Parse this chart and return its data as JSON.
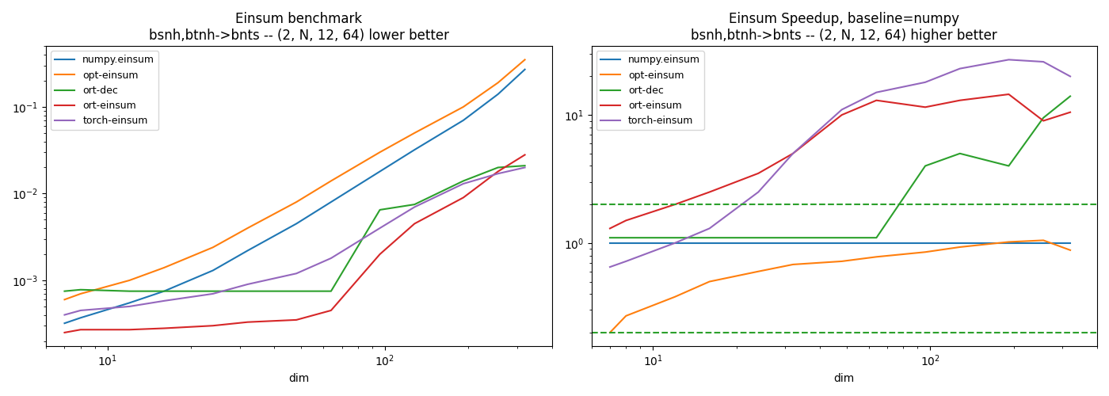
{
  "left_title": "Einsum benchmark\nbsnh,btnh->bnts -- (2, N, 12, 64) lower better",
  "right_title": "Einsum Speedup, baseline=numpy\nbsnh,btnh->bnts -- (2, N, 12, 64) higher better",
  "xlabel": "dim",
  "colors": {
    "numpy": "#1f77b4",
    "opt": "#ff7f0e",
    "ort_dec": "#2ca02c",
    "ort_einsum": "#d62728",
    "torch": "#9467bd"
  },
  "labels": [
    "numpy.einsum",
    "opt-einsum",
    "ort-dec",
    "ort-einsum",
    "torch-einsum"
  ],
  "series_keys": [
    "numpy",
    "opt",
    "ort_dec",
    "ort_einsum",
    "torch"
  ],
  "benchmark_x": {
    "numpy": [
      7,
      8,
      12,
      16,
      24,
      32,
      48,
      64,
      96,
      128,
      192,
      256,
      320
    ],
    "opt": [
      7,
      8,
      12,
      16,
      24,
      32,
      48,
      64,
      96,
      128,
      192,
      256,
      320
    ],
    "ort_dec": [
      7,
      8,
      12,
      16,
      24,
      32,
      48,
      64,
      96,
      128,
      192,
      256,
      320
    ],
    "ort_einsum": [
      7,
      8,
      12,
      16,
      24,
      32,
      48,
      64,
      96,
      128,
      192,
      256,
      320
    ],
    "torch": [
      7,
      8,
      12,
      16,
      24,
      32,
      48,
      64,
      96,
      128,
      192,
      256,
      320
    ]
  },
  "benchmark_y": {
    "numpy": [
      0.00032,
      0.00037,
      0.00055,
      0.00075,
      0.0013,
      0.0022,
      0.0045,
      0.008,
      0.018,
      0.032,
      0.07,
      0.14,
      0.27
    ],
    "opt": [
      0.0006,
      0.0007,
      0.001,
      0.0014,
      0.0024,
      0.004,
      0.008,
      0.014,
      0.03,
      0.05,
      0.1,
      0.19,
      0.35
    ],
    "ort_dec": [
      0.00075,
      0.00078,
      0.00075,
      0.00075,
      0.00075,
      0.00075,
      0.00075,
      0.00075,
      0.0065,
      0.0075,
      0.014,
      0.02,
      0.021
    ],
    "ort_einsum": [
      0.00025,
      0.00027,
      0.00027,
      0.00028,
      0.0003,
      0.00033,
      0.00035,
      0.00045,
      0.002,
      0.0045,
      0.009,
      0.018,
      0.028
    ],
    "torch": [
      0.0004,
      0.00045,
      0.0005,
      0.00058,
      0.0007,
      0.0009,
      0.0012,
      0.0018,
      0.004,
      0.007,
      0.013,
      0.017,
      0.02
    ]
  },
  "speedup_x": {
    "numpy": [
      7,
      8,
      12,
      16,
      24,
      32,
      48,
      64,
      96,
      128,
      192,
      256,
      320
    ],
    "opt": [
      7,
      8,
      12,
      16,
      24,
      32,
      48,
      64,
      96,
      128,
      192,
      256,
      320
    ],
    "ort_dec": [
      7,
      8,
      12,
      16,
      24,
      32,
      48,
      64,
      96,
      128,
      192,
      256,
      320
    ],
    "ort_einsum": [
      7,
      8,
      12,
      16,
      24,
      32,
      48,
      64,
      96,
      128,
      192,
      256,
      320
    ],
    "torch": [
      7,
      8,
      12,
      16,
      24,
      32,
      48,
      64,
      96,
      128,
      192,
      256,
      320
    ]
  },
  "speedup_y": {
    "numpy": [
      1.0,
      1.0,
      1.0,
      1.0,
      1.0,
      1.0,
      1.0,
      1.0,
      1.0,
      1.0,
      1.0,
      1.0,
      1.0
    ],
    "opt": [
      0.2,
      0.27,
      0.38,
      0.5,
      0.6,
      0.68,
      0.72,
      0.78,
      0.85,
      0.93,
      1.02,
      1.05,
      0.88
    ],
    "ort_dec": [
      1.1,
      1.1,
      1.1,
      1.1,
      1.1,
      1.1,
      1.1,
      1.1,
      4.0,
      5.0,
      4.0,
      9.5,
      14.0
    ],
    "ort_einsum": [
      1.3,
      1.5,
      2.0,
      2.5,
      3.5,
      5.0,
      10.0,
      13.0,
      11.5,
      13.0,
      14.5,
      9.0,
      10.5
    ],
    "torch": [
      0.65,
      0.72,
      1.0,
      1.3,
      2.5,
      5.0,
      11.0,
      15.0,
      18.0,
      23.0,
      27.0,
      26.0,
      20.0
    ]
  },
  "speedup_dashed_upper": 2.0,
  "speedup_dashed_lower": 0.2
}
